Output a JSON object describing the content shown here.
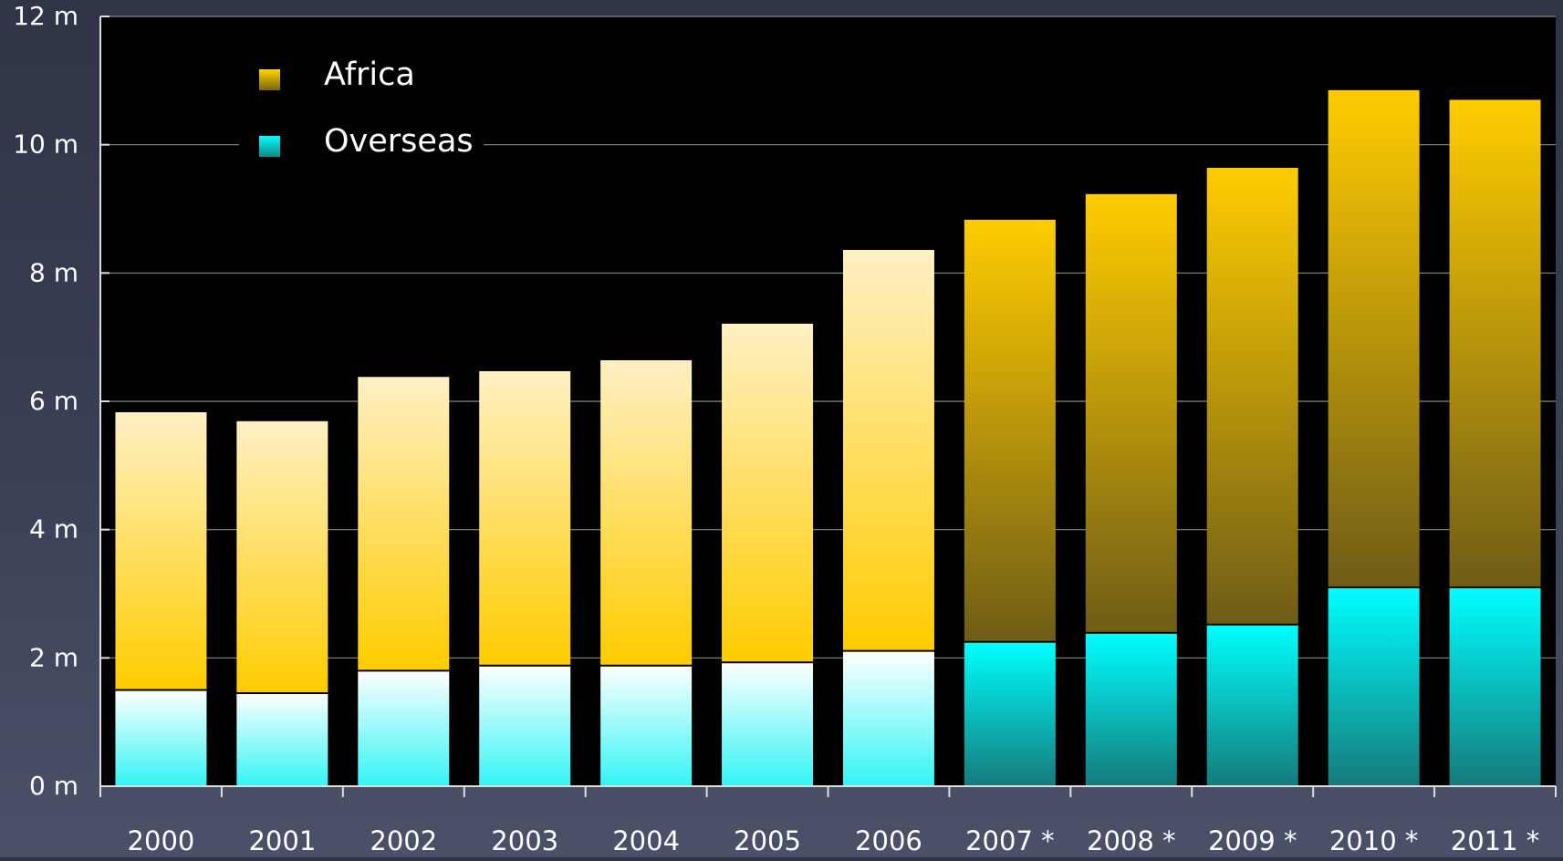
{
  "chart_data": {
    "type": "bar",
    "stacked": true,
    "categories": [
      "2000",
      "2001",
      "2002",
      "2003",
      "2004",
      "2005",
      "2006",
      "2007 *",
      "2008 *",
      "2009 *",
      "2010 *",
      "2011 *"
    ],
    "series": [
      {
        "name": "Overseas",
        "values": [
          1.5,
          1.45,
          1.8,
          1.88,
          1.88,
          1.93,
          2.11,
          2.25,
          2.39,
          2.52,
          3.1,
          3.1
        ]
      },
      {
        "name": "Africa",
        "values": [
          4.33,
          4.24,
          4.58,
          4.59,
          4.76,
          5.28,
          6.25,
          6.58,
          6.84,
          7.12,
          7.75,
          7.6
        ]
      }
    ],
    "ylim": [
      0,
      12
    ],
    "yticks": [
      0,
      2,
      4,
      6,
      8,
      10,
      12
    ],
    "ytick_labels": [
      "0 m",
      "2 m",
      "4 m",
      "6 m",
      "8 m",
      "10 m",
      "12 m"
    ],
    "grid": true,
    "legend_position": "top-left",
    "title": "",
    "xlabel": "",
    "ylabel": "",
    "colors": {
      "africa": "#ffcc00",
      "overseas": "#00ffff",
      "plot_background": "#000000",
      "text": "#ffffff"
    }
  },
  "legend": {
    "africa_label": "Africa",
    "overseas_label": "Overseas"
  }
}
